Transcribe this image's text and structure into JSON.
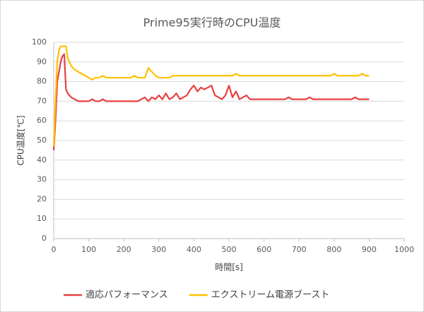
{
  "chart_data": {
    "type": "line",
    "title": "Prime95実行時のCPU温度",
    "xlabel": "時間[s]",
    "ylabel": "CPU温度[℃]",
    "x": [
      0,
      5,
      10,
      15,
      20,
      25,
      30,
      35,
      40,
      50,
      60,
      70,
      80,
      90,
      100,
      110,
      120,
      130,
      140,
      150,
      160,
      170,
      180,
      190,
      200,
      210,
      220,
      230,
      240,
      250,
      260,
      270,
      280,
      290,
      300,
      310,
      320,
      330,
      340,
      350,
      360,
      370,
      380,
      390,
      400,
      410,
      420,
      430,
      440,
      450,
      460,
      470,
      480,
      490,
      500,
      510,
      520,
      530,
      540,
      550,
      560,
      570,
      580,
      590,
      600,
      610,
      620,
      630,
      640,
      650,
      660,
      670,
      680,
      690,
      700,
      710,
      720,
      730,
      740,
      750,
      760,
      770,
      780,
      790,
      800,
      810,
      820,
      830,
      840,
      850,
      860,
      870,
      880,
      890,
      900
    ],
    "series": [
      {
        "name": "適応パフォーマンス",
        "color": "#e84042",
        "values": [
          45,
          60,
          80,
          85,
          90,
          93,
          94,
          76,
          74,
          72,
          71,
          70,
          70,
          70,
          70,
          71,
          70,
          70,
          71,
          70,
          70,
          70,
          70,
          70,
          70,
          70,
          70,
          70,
          70,
          71,
          72,
          70,
          72,
          71,
          73,
          71,
          74,
          71,
          72,
          74,
          71,
          72,
          73,
          76,
          78,
          75,
          77,
          76,
          77,
          78,
          73,
          72,
          71,
          73,
          78,
          72,
          75,
          71,
          72,
          73,
          71,
          71,
          71,
          71,
          71,
          71,
          71,
          71,
          71,
          71,
          71,
          72,
          71,
          71,
          71,
          71,
          71,
          72,
          71,
          71,
          71,
          71,
          71,
          71,
          71,
          71,
          71,
          71,
          71,
          71,
          72,
          71,
          71,
          71,
          71
        ]
      },
      {
        "name": "エクストリーム電源ブースト",
        "color": "#ffc000",
        "values": [
          47,
          70,
          90,
          96,
          98,
          98,
          98,
          98,
          92,
          88,
          86,
          85,
          84,
          83,
          82,
          81,
          82,
          82,
          83,
          82,
          82,
          82,
          82,
          82,
          82,
          82,
          82,
          83,
          82,
          82,
          82,
          87,
          85,
          83,
          82,
          82,
          82,
          82,
          83,
          83,
          83,
          83,
          83,
          83,
          83,
          83,
          83,
          83,
          83,
          83,
          83,
          83,
          83,
          83,
          83,
          83,
          84,
          83,
          83,
          83,
          83,
          83,
          83,
          83,
          83,
          83,
          83,
          83,
          83,
          83,
          83,
          83,
          83,
          83,
          83,
          83,
          83,
          83,
          83,
          83,
          83,
          83,
          83,
          83,
          84,
          83,
          83,
          83,
          83,
          83,
          83,
          83,
          84,
          83,
          83
        ]
      }
    ],
    "xlim": [
      0,
      1000
    ],
    "xticks": [
      0,
      100,
      200,
      300,
      400,
      500,
      600,
      700,
      800,
      900,
      1000
    ],
    "ylim": [
      0,
      100
    ],
    "yticks": [
      0,
      10,
      20,
      30,
      40,
      50,
      60,
      70,
      80,
      90,
      100
    ],
    "grid": true,
    "legend": "bottom"
  }
}
